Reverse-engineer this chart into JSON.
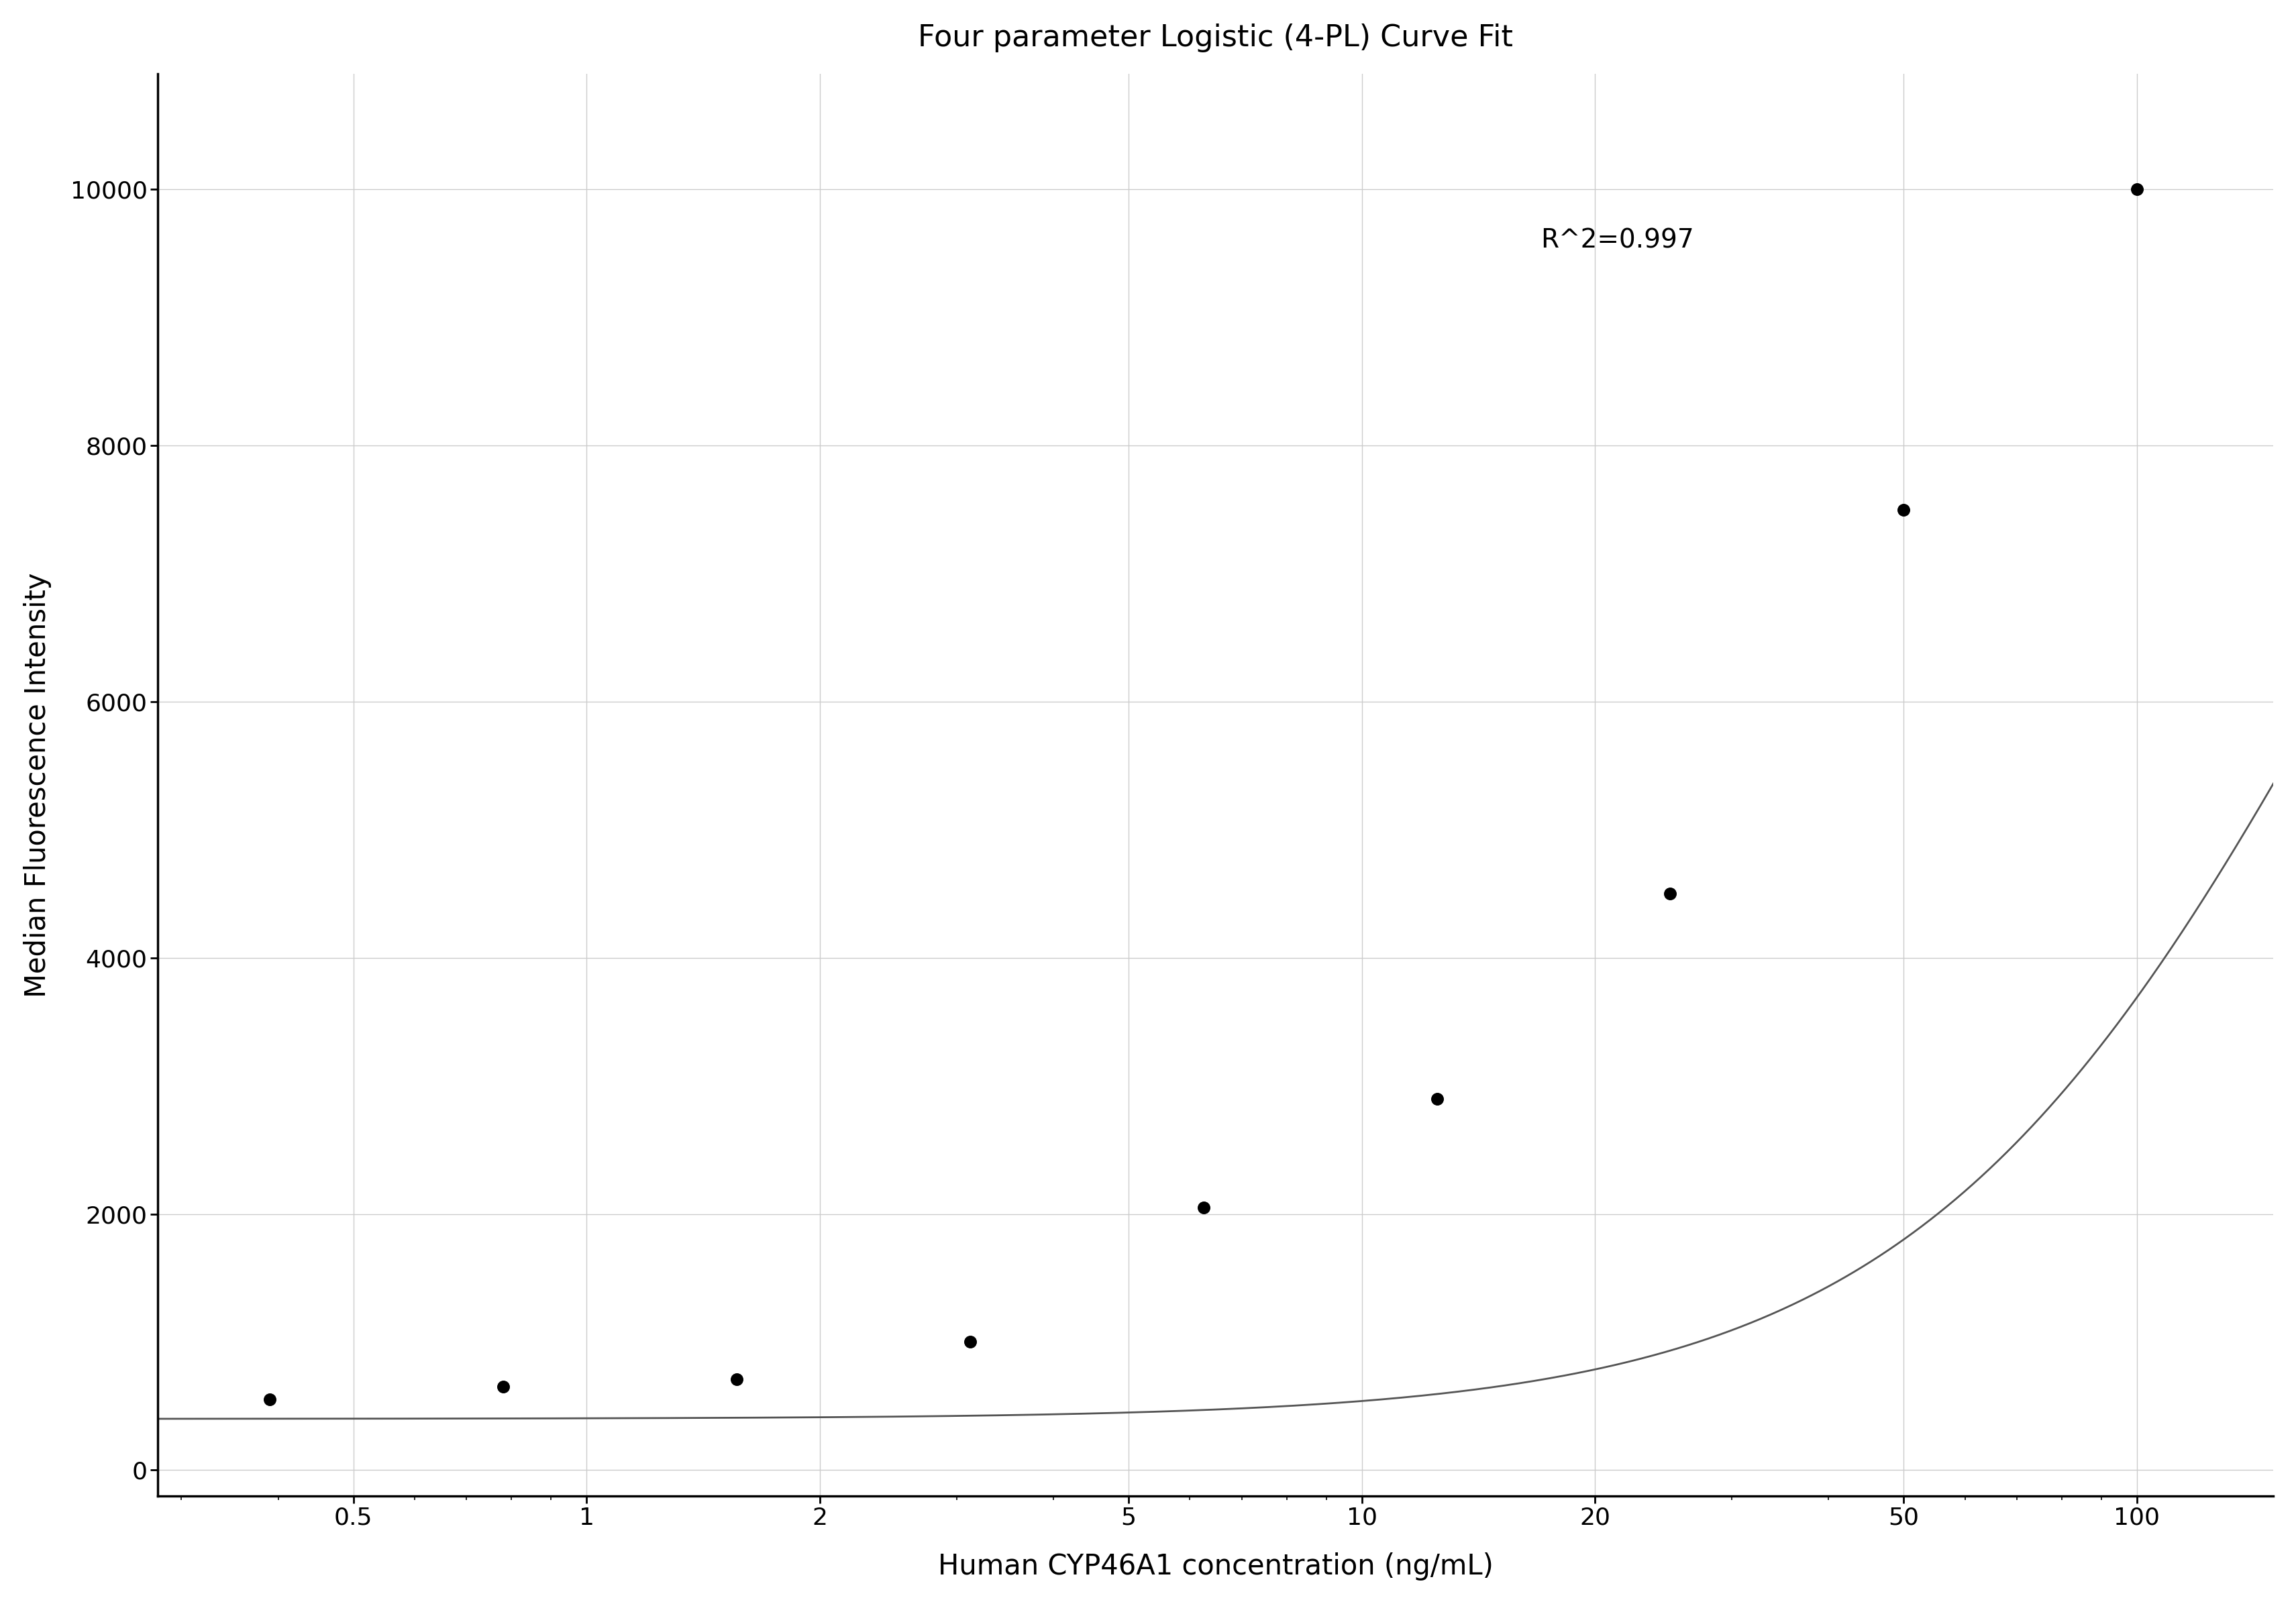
{
  "title": "Four parameter Logistic (4-PL) Curve Fit",
  "xlabel": "Human CYP46A1 concentration (ng/mL)",
  "ylabel": "Median Fluorescence Intensity",
  "r_squared": "R^2=0.997",
  "r_squared_x": 17,
  "r_squared_y": 9700,
  "data_x": [
    0.39,
    0.78,
    1.5625,
    3.125,
    6.25,
    12.5,
    25.0,
    50.0,
    100.0
  ],
  "data_y": [
    550,
    650,
    710,
    1000,
    2050,
    2900,
    4500,
    7500,
    10000
  ],
  "xlim_log_min": -0.553,
  "xlim_log_max": 2.176,
  "ylim": [
    -200,
    10900
  ],
  "xticks": [
    0.5,
    1,
    2,
    5,
    10,
    20,
    50,
    100
  ],
  "xticklabels": [
    "0.5",
    "1",
    "2",
    "5",
    "10",
    "20",
    "50",
    "100"
  ],
  "yticks": [
    0,
    2000,
    4000,
    6000,
    8000,
    10000
  ],
  "yticklabels": [
    "0",
    "2000",
    "4000",
    "6000",
    "8000",
    "10000"
  ],
  "grid_color": "#cccccc",
  "spine_color": "#000000",
  "dot_color": "#000000",
  "curve_color": "#555555",
  "background_color": "#ffffff",
  "title_fontsize": 32,
  "label_fontsize": 30,
  "tick_fontsize": 26,
  "annotation_fontsize": 28,
  "dot_size": 160,
  "line_width": 2.0
}
